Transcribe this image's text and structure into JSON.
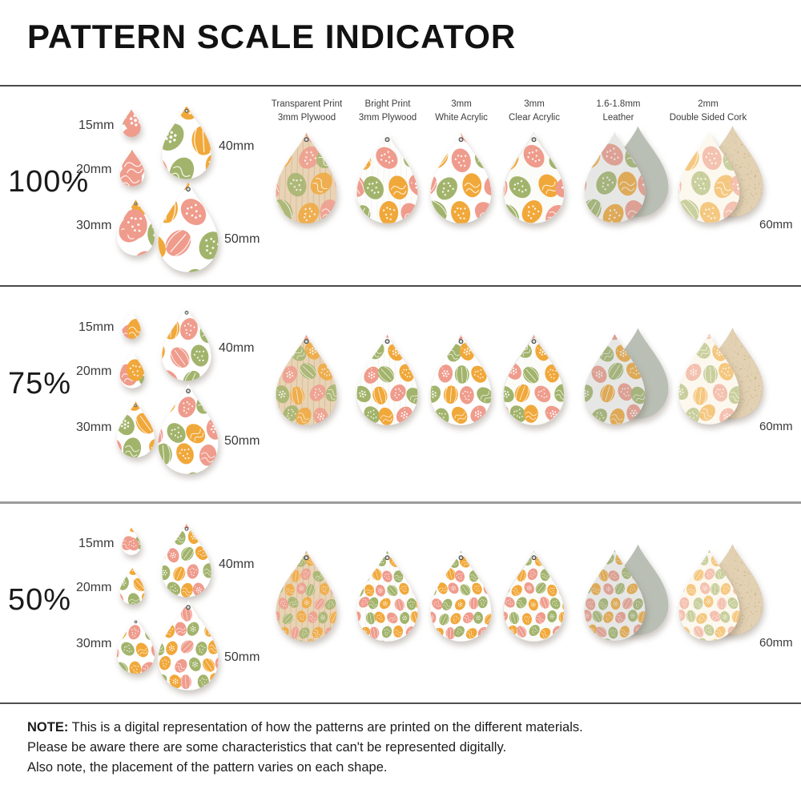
{
  "title": "PATTERN SCALE INDICATOR",
  "columns": [
    {
      "line1": "Transparent Print",
      "line2": "3mm Plywood"
    },
    {
      "line1": "Bright Print",
      "line2": "3mm Plywood"
    },
    {
      "line1": "3mm",
      "line2": "White Acrylic"
    },
    {
      "line1": "3mm",
      "line2": "Clear Acrylic"
    },
    {
      "line1": "1.6-1.8mm",
      "line2": "Leather"
    },
    {
      "line1": "2mm",
      "line2": "Double Sided Cork"
    }
  ],
  "rows": [
    {
      "scale": "100%",
      "factor": 1.0
    },
    {
      "scale": "75%",
      "factor": 0.75
    },
    {
      "scale": "50%",
      "factor": 0.5
    }
  ],
  "size_labels": {
    "s15": "15mm",
    "s20": "20mm",
    "s30": "30mm",
    "s40": "40mm",
    "s50": "50mm",
    "s60": "60mm"
  },
  "note": {
    "label": "NOTE:",
    "line1": "This is a digital representation of how the patterns are printed on the different materials.",
    "line2": "Please be aware there are some characteristics that can't be represented digitally.",
    "line3": "Also note, the placement of the pattern varies on each shape."
  },
  "colors": {
    "egg_orange": "#F1A83A",
    "egg_green": "#A2B46C",
    "egg_pink": "#EF9C8D",
    "plywood": "#E9D3B5",
    "print_white": "#FDFDFC",
    "white": "#FFFFFF",
    "acrylic_clear": "#FBFBF8",
    "leather_back": "#C7CDC0",
    "cork": "#BF8C52",
    "divider_dark": "#4A4A4A",
    "divider_light": "#9B9B9B"
  }
}
